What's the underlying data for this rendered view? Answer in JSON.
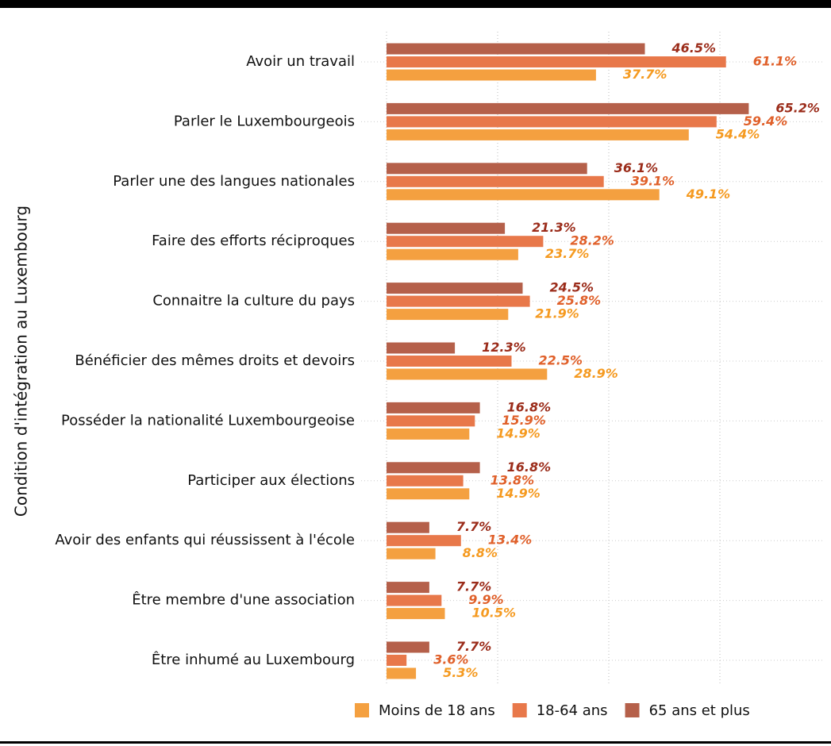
{
  "chart_data": {
    "type": "hbar",
    "y_label": "Condition d'intégration au Luxembourg",
    "categories": [
      "Avoir un travail",
      "Parler le Luxembourgeois",
      "Parler une des langues nationales",
      "Faire des efforts réciproques",
      "Connaitre la culture du pays",
      "Bénéficier des mêmes droits et devoirs",
      "Posséder la nationalité Luxembourgeoise",
      "Participer aux élections",
      "Avoir des enfants qui réussissent à l'école",
      "Être membre d'une association",
      "Être inhumé au Luxembourg"
    ],
    "series": [
      {
        "name": "Moins de 18 ans",
        "color": "#f4a040",
        "label_color": "#f59a20",
        "values": [
          37.7,
          54.4,
          49.1,
          23.7,
          21.9,
          28.9,
          14.9,
          14.9,
          8.8,
          10.5,
          5.3
        ],
        "value_labels": [
          "37.7%",
          "54.4%",
          "49.1%",
          "23.7%",
          "21.9%",
          "28.9%",
          "14.9%",
          "14.9%",
          "8.8%",
          "10.5%",
          "5.3%"
        ]
      },
      {
        "name": "18-64 ans",
        "color": "#e8784a",
        "label_color": "#e0602a",
        "values": [
          61.1,
          59.4,
          39.1,
          28.2,
          25.8,
          22.5,
          15.9,
          13.8,
          13.4,
          9.9,
          3.6
        ],
        "value_labels": [
          "61.1%",
          "59.4%",
          "39.1%",
          "28.2%",
          "25.8%",
          "22.5%",
          "15.9%",
          "13.8%",
          "13.4%",
          "9.9%",
          "3.6%"
        ]
      },
      {
        "name": "65 ans et plus",
        "color": "#b5604a",
        "label_color": "#9b2c1a",
        "values": [
          46.5,
          65.2,
          36.1,
          21.3,
          24.5,
          12.3,
          16.8,
          16.8,
          7.7,
          7.7,
          7.7
        ],
        "value_labels": [
          "46.5%",
          "65.2%",
          "36.1%",
          "21.3%",
          "24.5%",
          "12.3%",
          "16.8%",
          "16.8%",
          "7.7%",
          "7.7%",
          "7.7%"
        ]
      }
    ],
    "xlim": [
      0,
      80
    ],
    "xticks": [
      0,
      20,
      40,
      60
    ],
    "grid": true,
    "legend": "bottom"
  }
}
